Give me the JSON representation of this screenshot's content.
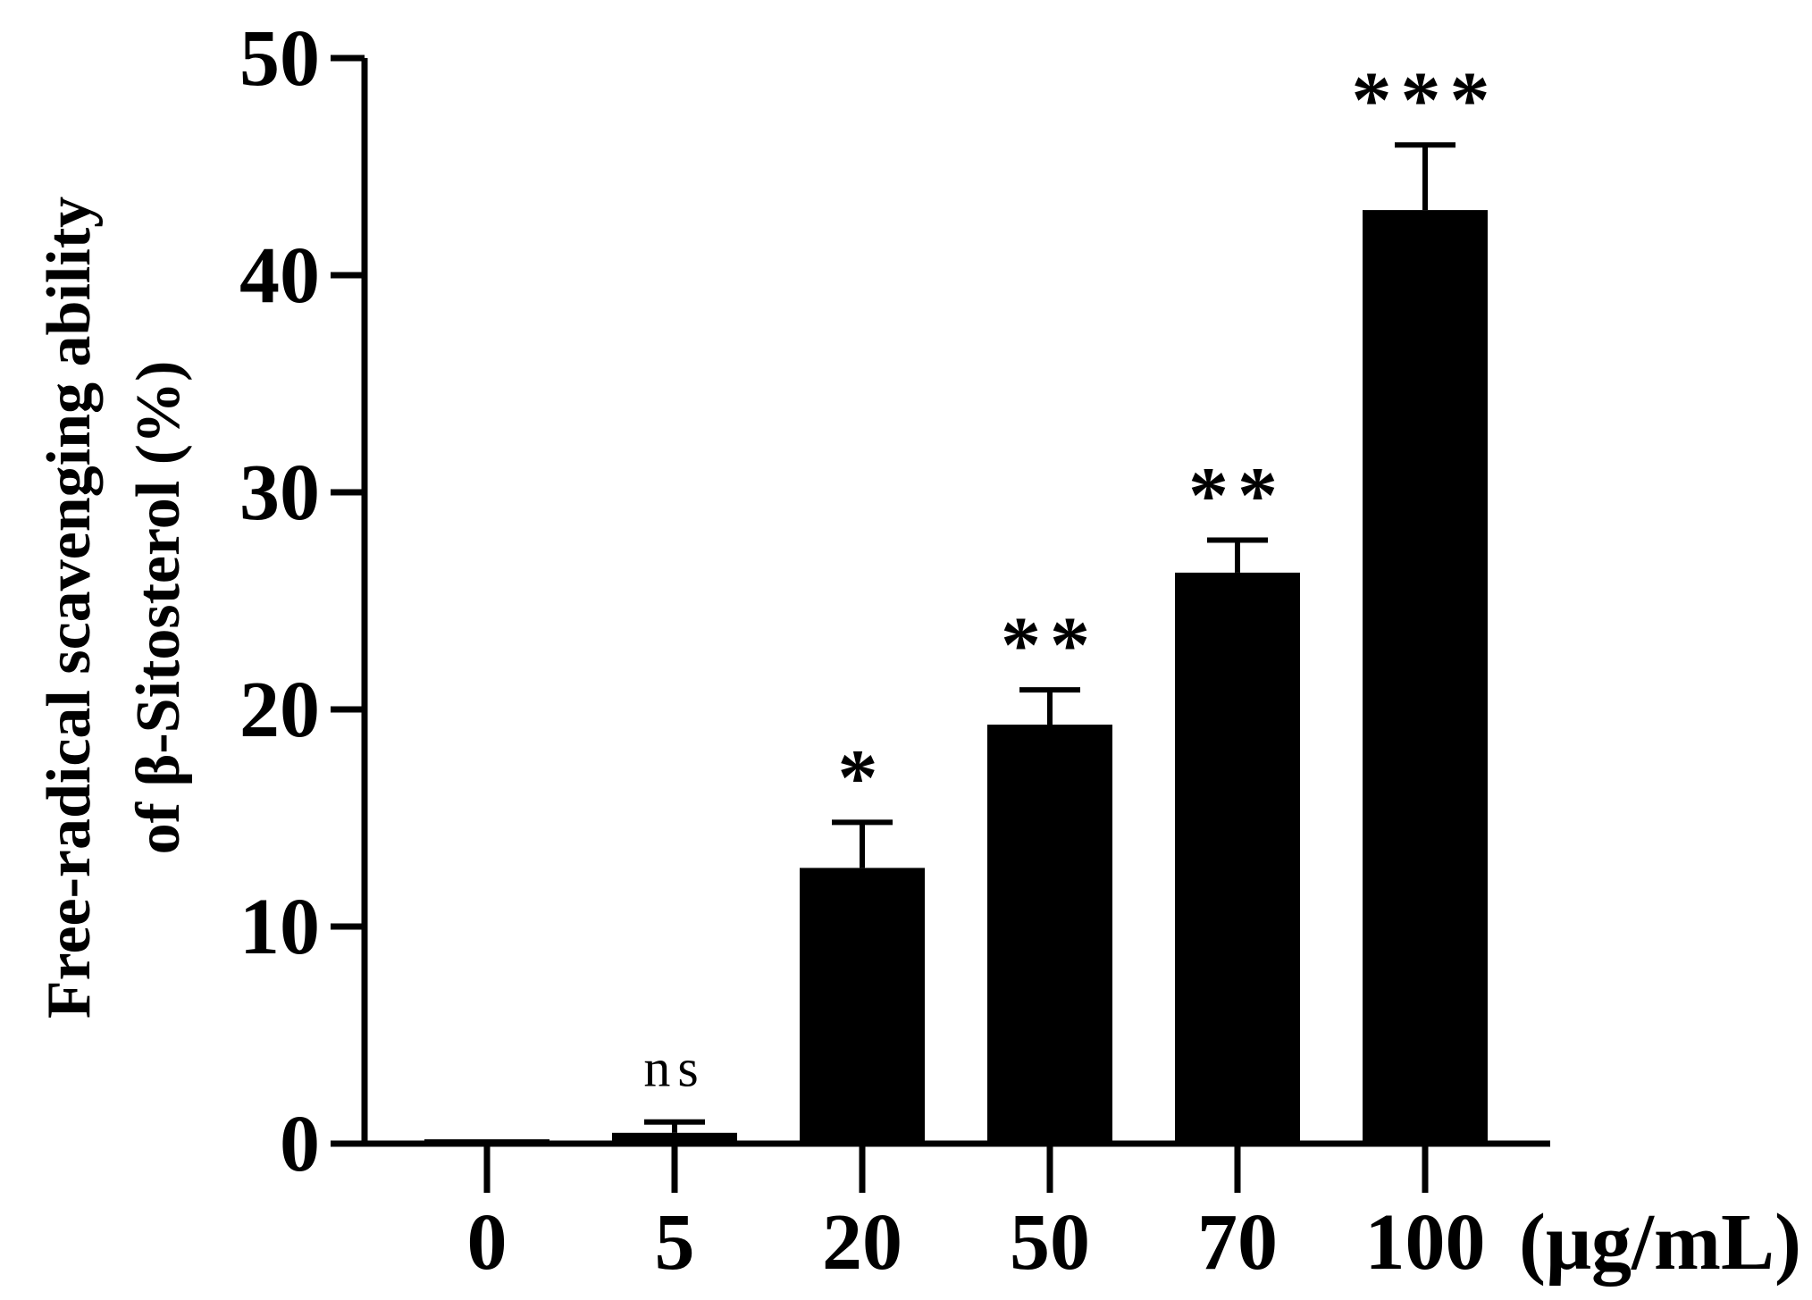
{
  "chart_data": {
    "type": "bar",
    "title": "",
    "xlabel": "",
    "x_unit": "(μg/mL)",
    "ylabel_lines": [
      "Free-radical scavenging ability",
      "of β-Sitosterol (%)"
    ],
    "categories": [
      "0",
      "5",
      "20",
      "50",
      "70",
      "100"
    ],
    "series": [
      {
        "values": [
          0.2,
          0.5,
          12.7,
          19.3,
          26.3,
          43.0
        ],
        "error": [
          0.0,
          0.5,
          2.1,
          1.6,
          1.5,
          3.0
        ]
      }
    ],
    "annotations": [
      "",
      "ns",
      "*",
      "**",
      "**",
      "***"
    ],
    "ylim": [
      0,
      50
    ],
    "yticks": [
      "0",
      "10",
      "20",
      "30",
      "40",
      "50"
    ],
    "grid": false,
    "bar_color": "#000000"
  }
}
